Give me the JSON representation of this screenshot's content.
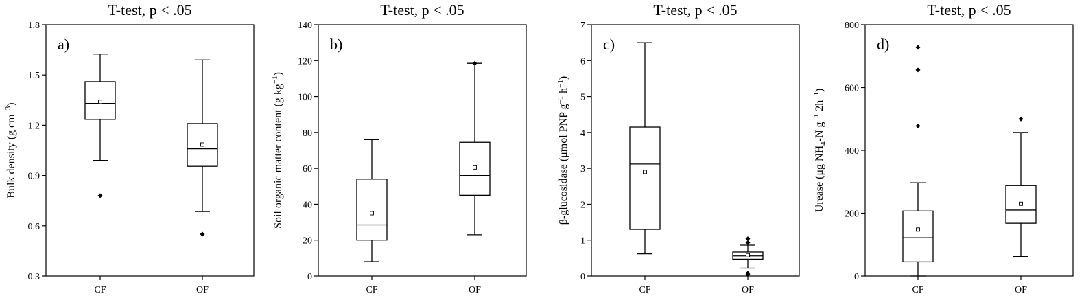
{
  "chart_data": [
    {
      "type": "boxplot",
      "panel_label": "a)",
      "title": "T-test, p < .05",
      "ylabel": {
        "pre": "Bulk density (g cm",
        "sup": "−3",
        "post": ")"
      },
      "ylim": [
        0.3,
        1.8
      ],
      "yticks": [
        0.3,
        0.6,
        0.9,
        1.2,
        1.5,
        1.8
      ],
      "ytick_labels": [
        "0.3",
        "0.6",
        "0.9",
        "1.2",
        "1.5",
        "1.8"
      ],
      "categories": [
        "CF",
        "OF"
      ],
      "boxes": [
        {
          "whisker_low": 0.99,
          "q1": 1.235,
          "median": 1.33,
          "q3": 1.46,
          "whisker_high": 1.625,
          "mean": 1.34,
          "outliers": [
            0.78
          ]
        },
        {
          "whisker_low": 0.685,
          "q1": 0.955,
          "median": 1.06,
          "q3": 1.21,
          "whisker_high": 1.59,
          "mean": 1.085,
          "outliers": [
            0.55
          ]
        }
      ]
    },
    {
      "type": "boxplot",
      "panel_label": "b)",
      "title": "T-test, p < .05",
      "ylabel": {
        "pre": "Soil organic matter content (g kg",
        "sup": "−1",
        "post": ")"
      },
      "ylim": [
        0,
        140
      ],
      "yticks": [
        0,
        20,
        40,
        60,
        80,
        100,
        120,
        140
      ],
      "ytick_labels": [
        "0",
        "20",
        "40",
        "60",
        "80",
        "100",
        "120",
        "140"
      ],
      "categories": [
        "CF",
        "OF"
      ],
      "boxes": [
        {
          "whisker_low": 8,
          "q1": 20,
          "median": 28.5,
          "q3": 54,
          "whisker_high": 76,
          "mean": 35,
          "outliers": []
        },
        {
          "whisker_low": 23,
          "q1": 45,
          "median": 56,
          "q3": 74.5,
          "whisker_high": 118.5,
          "mean": 60.5,
          "outliers": [
            118.5
          ]
        }
      ]
    },
    {
      "type": "boxplot",
      "panel_label": "c)",
      "title": "T-test, p < .05",
      "ylabel": {
        "pre": "β-glucosidase (μmol PNP g",
        "sup": "−1",
        "mid": " h",
        "sup2": "−1",
        "post": ")"
      },
      "ylim": [
        0,
        7
      ],
      "yticks": [
        0,
        1,
        2,
        3,
        4,
        5,
        6,
        7
      ],
      "ytick_labels": [
        "0",
        "1",
        "2",
        "3",
        "4",
        "5",
        "6",
        "7"
      ],
      "categories": [
        "CF",
        "OF"
      ],
      "boxes": [
        {
          "whisker_low": 0.62,
          "q1": 1.3,
          "median": 3.12,
          "q3": 4.15,
          "whisker_high": 6.5,
          "mean": 2.9,
          "outliers": []
        },
        {
          "whisker_low": 0.22,
          "q1": 0.47,
          "median": 0.56,
          "q3": 0.67,
          "whisker_high": 0.86,
          "mean": 0.58,
          "outliers": [
            1.04,
            0.93,
            0.08,
            0.04
          ]
        }
      ]
    },
    {
      "type": "boxplot",
      "panel_label": "d)",
      "title": "T-test, p < .05",
      "ylabel": {
        "pre": "Urease (μg NH",
        "sub": "4",
        "mid": "-N g",
        "sup": "−1",
        "mid2": " 2h",
        "sup2": "−1",
        "post": ")"
      },
      "ylim": [
        0,
        800
      ],
      "yticks": [
        0,
        200,
        400,
        600,
        800
      ],
      "ytick_labels": [
        "0",
        "200",
        "400",
        "600",
        "800"
      ],
      "categories": [
        "CF",
        "OF"
      ],
      "boxes": [
        {
          "whisker_low": 0,
          "q1": 45,
          "median": 122,
          "q3": 207,
          "whisker_high": 297,
          "mean": 148,
          "outliers": [
            728,
            656,
            478
          ]
        },
        {
          "whisker_low": 62,
          "q1": 168,
          "median": 210,
          "q3": 288,
          "whisker_high": 457,
          "mean": 230,
          "outliers": [
            500
          ]
        }
      ]
    }
  ]
}
